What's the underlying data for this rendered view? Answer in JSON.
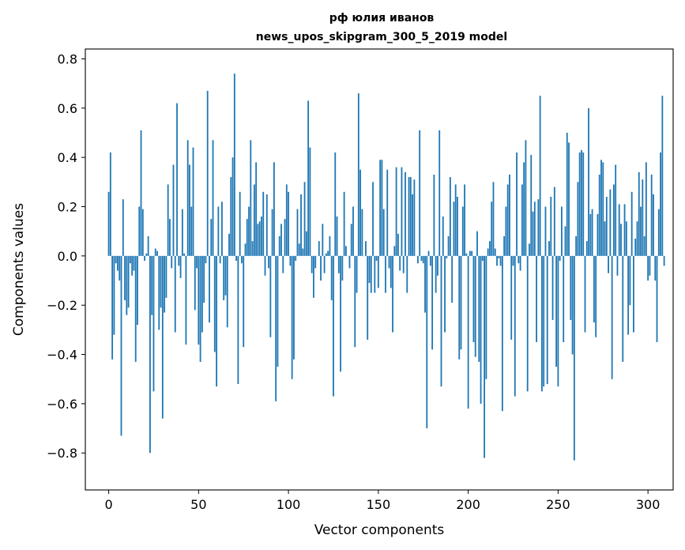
{
  "chart_data": {
    "type": "bar",
    "title": "рф юлия иванов",
    "subtitle": "news_upos_skipgram_300_5_2019 model",
    "xlabel": "Vector components",
    "ylabel": "Components values",
    "xlim": [
      -13,
      314
    ],
    "ylim": [
      -0.95,
      0.84
    ],
    "xticks": [
      0,
      50,
      100,
      150,
      200,
      250,
      300
    ],
    "xtick_labels": [
      "0",
      "50",
      "100",
      "150",
      "200",
      "250",
      "300"
    ],
    "yticks": [
      -0.8,
      -0.6,
      -0.4,
      -0.2,
      0.0,
      0.2,
      0.4,
      0.6,
      0.8
    ],
    "ytick_labels": [
      "−0.8",
      "−0.6",
      "−0.4",
      "−0.2",
      "0.0",
      "0.2",
      "0.4",
      "0.6",
      "0.8"
    ],
    "grid": false,
    "bar_color": "#1f77b4",
    "values": [
      0.26,
      0.42,
      -0.42,
      -0.32,
      -0.03,
      -0.06,
      -0.1,
      -0.73,
      0.23,
      -0.18,
      -0.24,
      -0.21,
      -0.03,
      -0.08,
      -0.06,
      -0.43,
      -0.28,
      0.2,
      0.51,
      0.19,
      -0.02,
      0.01,
      0.08,
      -0.8,
      -0.24,
      -0.55,
      0.03,
      0.02,
      -0.3,
      -0.21,
      -0.66,
      -0.23,
      -0.17,
      0.29,
      0.15,
      -0.05,
      0.37,
      -0.31,
      0.62,
      -0.04,
      -0.09,
      0.19,
      0.01,
      -0.36,
      0.47,
      0.37,
      0.2,
      0.44,
      -0.22,
      -0.05,
      -0.36,
      -0.43,
      -0.31,
      -0.19,
      -0.03,
      0.67,
      -0.27,
      0.15,
      0.47,
      -0.39,
      -0.53,
      0.2,
      -0.03,
      0.22,
      -0.18,
      -0.16,
      -0.29,
      0.09,
      0.32,
      0.4,
      0.74,
      -0.02,
      -0.52,
      0.26,
      -0.03,
      -0.37,
      0.05,
      0.15,
      0.2,
      0.47,
      0.06,
      0.29,
      0.38,
      0.13,
      0.14,
      0.16,
      0.26,
      -0.08,
      0.25,
      -0.05,
      -0.33,
      0.19,
      0.38,
      -0.59,
      -0.45,
      0.08,
      0.13,
      -0.07,
      0.15,
      0.29,
      0.26,
      -0.04,
      -0.5,
      -0.42,
      -0.02,
      0.19,
      0.05,
      0.25,
      0.03,
      0.3,
      0.1,
      0.63,
      0.44,
      -0.07,
      -0.17,
      -0.05,
      0.0,
      0.06,
      -0.1,
      0.13,
      -0.07,
      0.01,
      0.02,
      0.08,
      -0.18,
      -0.57,
      0.42,
      0.16,
      -0.07,
      -0.47,
      -0.1,
      0.26,
      0.04,
      0.0,
      -0.05,
      0.13,
      0.2,
      -0.37,
      -0.15,
      0.66,
      0.35,
      0.19,
      0.0,
      0.06,
      -0.34,
      -0.11,
      -0.15,
      0.3,
      -0.15,
      -0.02,
      -0.13,
      0.39,
      0.39,
      0.19,
      -0.15,
      0.35,
      -0.05,
      -0.13,
      -0.31,
      0.04,
      0.36,
      0.09,
      -0.06,
      0.36,
      -0.07,
      0.34,
      -0.15,
      0.32,
      0.32,
      0.25,
      0.31,
      0.0,
      -0.03,
      0.51,
      -0.02,
      -0.03,
      -0.23,
      -0.7,
      0.02,
      -0.04,
      -0.38,
      0.33,
      -0.15,
      -0.08,
      0.51,
      -0.53,
      0.16,
      -0.31,
      -0.01,
      0.08,
      0.32,
      -0.19,
      0.22,
      0.29,
      0.24,
      -0.42,
      -0.38,
      0.2,
      0.29,
      0.01,
      -0.62,
      0.02,
      0.02,
      -0.35,
      -0.41,
      0.1,
      -0.43,
      -0.6,
      -0.02,
      -0.82,
      -0.5,
      0.03,
      0.06,
      0.22,
      0.3,
      0.03,
      -0.04,
      -0.01,
      -0.04,
      -0.63,
      0.08,
      0.2,
      0.29,
      0.33,
      -0.34,
      -0.04,
      -0.57,
      0.42,
      -0.03,
      -0.06,
      0.29,
      0.38,
      0.47,
      -0.55,
      0.05,
      0.41,
      0.18,
      0.22,
      -0.35,
      0.23,
      0.65,
      -0.55,
      -0.53,
      0.2,
      -0.52,
      0.06,
      0.24,
      -0.26,
      0.28,
      -0.45,
      -0.53,
      -0.02,
      0.2,
      -0.35,
      0.12,
      0.5,
      0.46,
      -0.26,
      -0.4,
      -0.83,
      0.08,
      0.3,
      0.42,
      0.43,
      0.42,
      -0.31,
      0.06,
      0.6,
      0.17,
      0.19,
      -0.27,
      -0.33,
      0.17,
      0.33,
      0.39,
      0.38,
      0.14,
      0.24,
      -0.07,
      0.27,
      -0.5,
      0.29,
      0.37,
      -0.08,
      0.21,
      0.13,
      -0.43,
      0.21,
      0.14,
      -0.32,
      -0.2,
      0.26,
      -0.31,
      0.07,
      0.14,
      0.34,
      0.2,
      0.31,
      0.08,
      0.38,
      -0.1,
      -0.08,
      0.33,
      0.25,
      -0.1,
      -0.35,
      0.19,
      0.42,
      0.65,
      -0.04
    ]
  }
}
